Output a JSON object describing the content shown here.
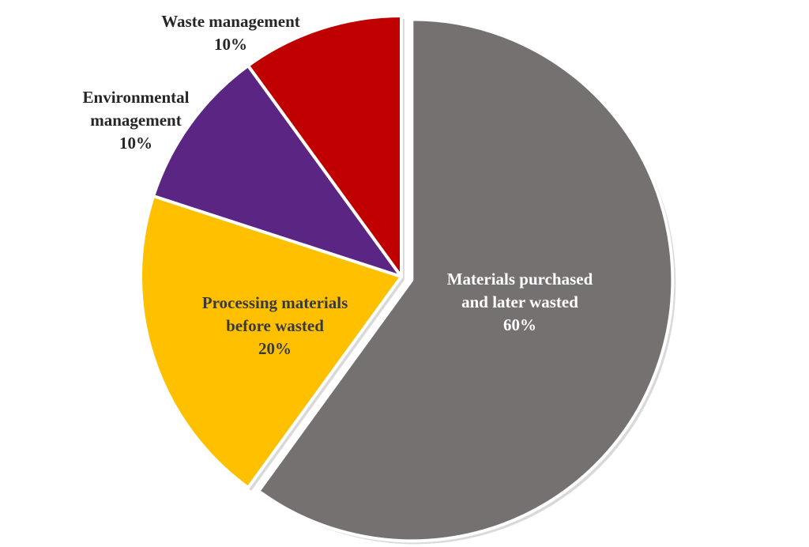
{
  "chart_data": {
    "type": "pie",
    "title": "",
    "start_angle_deg": 0,
    "direction": "clockwise",
    "slices": [
      {
        "name": "Materials purchased and later wasted",
        "value": 60,
        "label_lines": [
          "Materials purchased",
          "and later wasted",
          "60%"
        ],
        "color": "#767171",
        "label_color": "#ffffff",
        "exploded": true,
        "label_position": "inside"
      },
      {
        "name": "Processing materials before wasted",
        "value": 20,
        "label_lines": [
          "Processing materials",
          "before wasted",
          "20%"
        ],
        "color": "#ffc000",
        "label_color": "#3a3a3a",
        "exploded": false,
        "label_position": "inside"
      },
      {
        "name": "Environmental management",
        "value": 10,
        "label_lines": [
          "Environmental",
          "management",
          "10%"
        ],
        "color": "#5b2583",
        "label_color": "#262626",
        "exploded": false,
        "label_position": "outside"
      },
      {
        "name": "Waste management",
        "value": 10,
        "label_lines": [
          "Waste management",
          "10%"
        ],
        "color": "#c00000",
        "label_color": "#262626",
        "exploded": false,
        "label_position": "outside"
      }
    ],
    "shadow_color": "#d9d9d9",
    "separator_color": "#ffffff"
  }
}
